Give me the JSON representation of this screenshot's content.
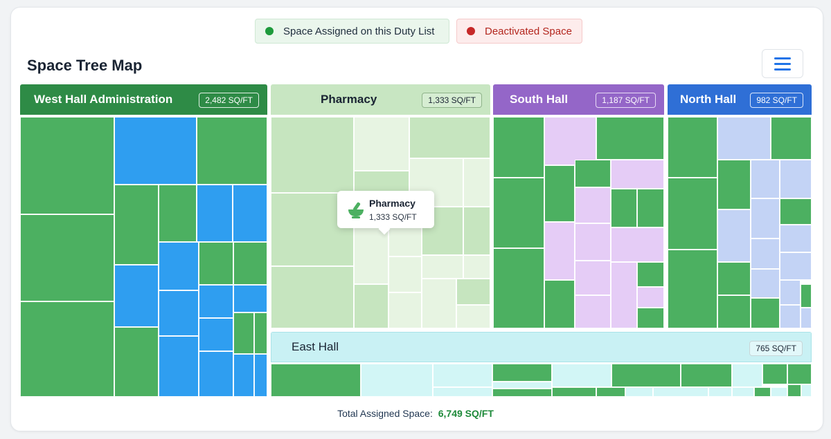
{
  "legend": {
    "assigned_label": "Space Assigned on this Duty List",
    "deactivated_label": "Deactivated Space",
    "assigned_color": "#1e9a3c",
    "deactivated_color": "#c62828"
  },
  "page_title": "Space Tree Map",
  "menu_icon": "hamburger-menu-icon",
  "halls": {
    "west": {
      "name": "West Hall Administration",
      "area": "2,482 SQ/FT",
      "color": "#2e8b46"
    },
    "pharmacy": {
      "name": "Pharmacy",
      "area": "1,333 SQ/FT",
      "color": "#c8e6c2"
    },
    "south": {
      "name": "South Hall",
      "area": "1,187 SQ/FT",
      "color": "#9466c8"
    },
    "north": {
      "name": "North Hall",
      "area": "982 SQ/FT",
      "color": "#2f6fd6"
    },
    "east": {
      "name": "East Hall",
      "area": "765 SQ/FT",
      "color": "#c9f1f4"
    }
  },
  "tooltip": {
    "icon": "mortar-pestle-icon",
    "title": "Pharmacy",
    "area": "1,333 SQ/FT"
  },
  "footer": {
    "label": "Total Assigned Space:",
    "value": "6,749 SQ/FT"
  }
}
